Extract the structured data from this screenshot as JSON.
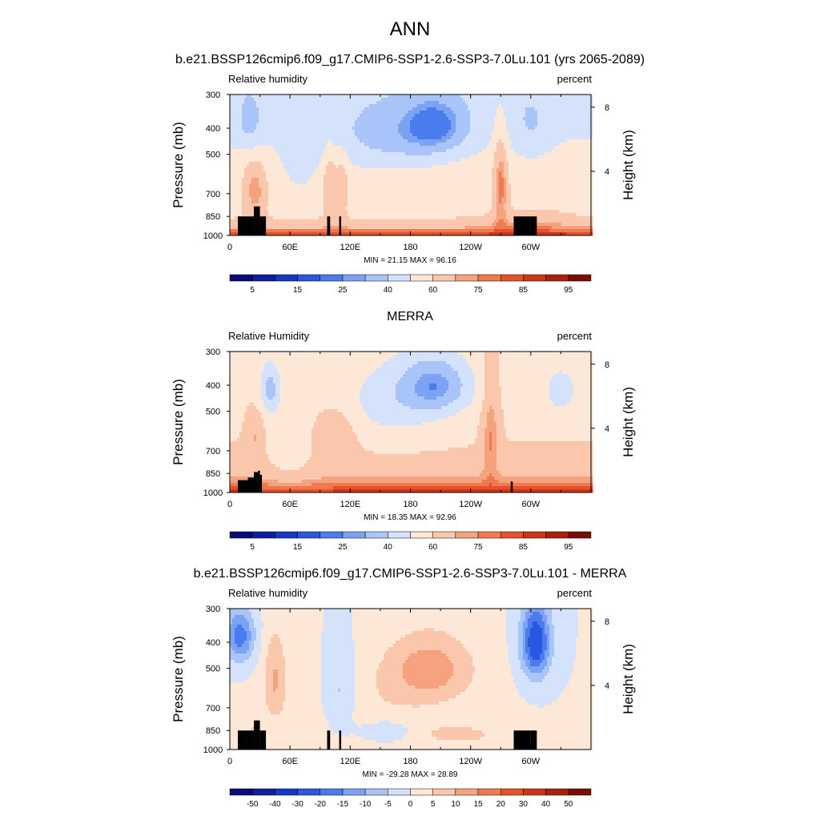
{
  "figure": {
    "title": "ANN",
    "y_label": "Pressure (mb)",
    "y2_label": "Height (km)"
  },
  "chart_data": [
    {
      "type": "heatmap",
      "title": "b.e21.BSSP126cmip6.f09_g17.CMIP6-SSP1-2.6-SSP3-7.0Lu.101 (yrs 2065-2089)",
      "left_label": "Relative humidity",
      "units": "percent",
      "ylabel": "Pressure (mb)",
      "y2label": "Height (km)",
      "x_ticks": [
        "0",
        "60E",
        "120E",
        "180",
        "120W",
        "60W"
      ],
      "y_ticks": [
        "300",
        "400",
        "500",
        "700",
        "850",
        "1000"
      ],
      "y2_ticks": [
        "8",
        "4"
      ],
      "min_max": "MIN = 21.15  MAX = 96.16",
      "colorbar_labels": [
        "5",
        "15",
        "25",
        "40",
        "60",
        "75",
        "85",
        "95"
      ],
      "colors": [
        "#0a0a7a",
        "#0d1e9e",
        "#1637c4",
        "#2b57e0",
        "#4a7cee",
        "#7ca2f4",
        "#a9c4f8",
        "#d4e3fb",
        "#fde8d8",
        "#fac7ac",
        "#f5a27e",
        "#ef7a52",
        "#e5512b",
        "#cf3516",
        "#ab1f0c",
        "#7a0c05"
      ],
      "terrain": "model",
      "field": "model"
    },
    {
      "type": "heatmap",
      "title": "MERRA",
      "left_label": "Relative Humidity",
      "units": "percent",
      "ylabel": "Pressure (mb)",
      "y2label": "Height (km)",
      "x_ticks": [
        "0",
        "60E",
        "120E",
        "180",
        "120W",
        "60W"
      ],
      "y_ticks": [
        "300",
        "400",
        "500",
        "700",
        "850",
        "1000"
      ],
      "y2_ticks": [
        "8",
        "4"
      ],
      "min_max": "MIN = 18.35  MAX = 92.96",
      "colorbar_labels": [
        "5",
        "15",
        "25",
        "40",
        "60",
        "75",
        "85",
        "95"
      ],
      "colors": [
        "#0a0a7a",
        "#0d1e9e",
        "#1637c4",
        "#2b57e0",
        "#4a7cee",
        "#7ca2f4",
        "#a9c4f8",
        "#d4e3fb",
        "#fde8d8",
        "#fac7ac",
        "#f5a27e",
        "#ef7a52",
        "#e5512b",
        "#cf3516",
        "#ab1f0c",
        "#7a0c05"
      ],
      "terrain": "obs",
      "field": "obs"
    },
    {
      "type": "heatmap",
      "title": "b.e21.BSSP126cmip6.f09_g17.CMIP6-SSP1-2.6-SSP3-7.0Lu.101 - MERRA",
      "left_label": "Relative humidity",
      "units": "percent",
      "ylabel": "Pressure (mb)",
      "y2label": "Height (km)",
      "x_ticks": [
        "0",
        "60E",
        "120E",
        "180",
        "120W",
        "60W"
      ],
      "y_ticks": [
        "300",
        "400",
        "500",
        "700",
        "850",
        "1000"
      ],
      "y2_ticks": [
        "8",
        "4"
      ],
      "min_max": "MIN = -29.28  MAX = 28.89",
      "colorbar_labels": [
        "-50",
        "-40",
        "-30",
        "-20",
        "-15",
        "-10",
        "-5",
        "0",
        "5",
        "10",
        "15",
        "20",
        "30",
        "40",
        "50"
      ],
      "colors": [
        "#0a0a7a",
        "#0d1e9e",
        "#1637c4",
        "#2b57e0",
        "#4a7cee",
        "#7ca2f4",
        "#a9c4f8",
        "#d4e3fb",
        "#fde8d8",
        "#fac7ac",
        "#f5a27e",
        "#ef7a52",
        "#e5512b",
        "#cf3516",
        "#ab1f0c",
        "#7a0c05"
      ],
      "terrain": "model",
      "field": "diff"
    }
  ]
}
